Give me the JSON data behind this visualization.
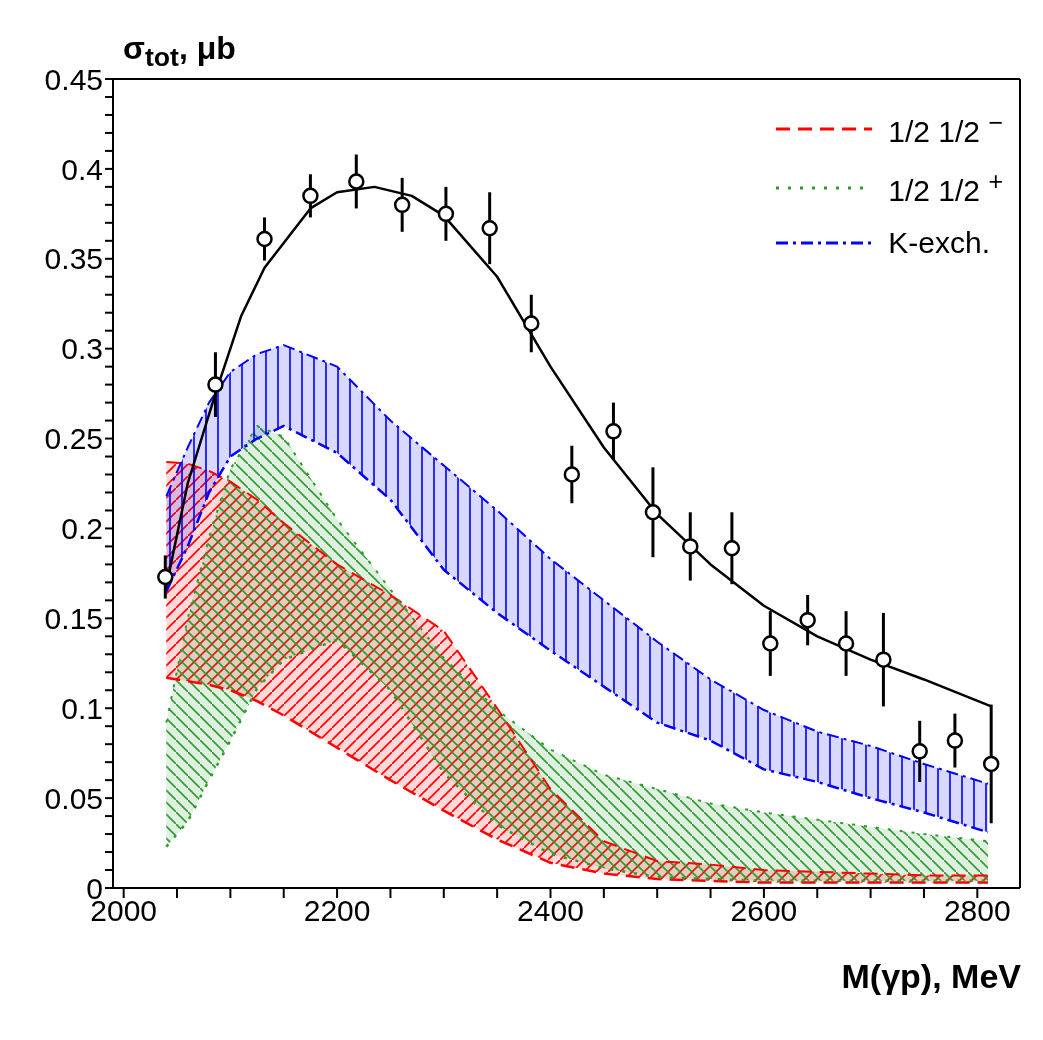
{
  "chart_data": {
    "type": "line",
    "xlabel": "M(γp), MeV",
    "ylabel": "σ$_{tot}$, μb",
    "xlim": [
      1990,
      2840
    ],
    "xticks": [
      2000,
      {
        "value": 2050,
        "label": null
      },
      {
        "value": 2100,
        "label": null
      },
      {
        "value": 2150,
        "label": null
      },
      2200,
      {
        "value": 2250,
        "label": null
      },
      {
        "value": 2300,
        "label": null
      },
      {
        "value": 2350,
        "label": null
      },
      2400,
      {
        "value": 2450,
        "label": null
      },
      {
        "value": 2500,
        "label": null
      },
      {
        "value": 2550,
        "label": null
      },
      2600,
      {
        "value": 2650,
        "label": null
      },
      {
        "value": 2700,
        "label": null
      },
      {
        "value": 2750,
        "label": null
      },
      2800
    ],
    "ylim": [
      0,
      0.45
    ],
    "yticks": [
      0,
      {
        "value": 0.01,
        "label": null
      },
      {
        "value": 0.02,
        "label": null
      },
      {
        "value": 0.03,
        "label": null
      },
      {
        "value": 0.04,
        "label": null
      },
      0.05,
      {
        "value": 0.06,
        "label": null
      },
      {
        "value": 0.07,
        "label": null
      },
      {
        "value": 0.08,
        "label": null
      },
      {
        "value": 0.09,
        "label": null
      },
      0.1,
      {
        "value": 0.11,
        "label": null
      },
      {
        "value": 0.12,
        "label": null
      },
      {
        "value": 0.13,
        "label": null
      },
      {
        "value": 0.14,
        "label": null
      },
      0.15,
      {
        "value": 0.16,
        "label": null
      },
      {
        "value": 0.17,
        "label": null
      },
      {
        "value": 0.18,
        "label": null
      },
      {
        "value": 0.19,
        "label": null
      },
      0.2,
      {
        "value": 0.21,
        "label": null
      },
      {
        "value": 0.22,
        "label": null
      },
      {
        "value": 0.23,
        "label": null
      },
      {
        "value": 0.24,
        "label": null
      },
      0.25,
      {
        "value": 0.26,
        "label": null
      },
      {
        "value": 0.27,
        "label": null
      },
      {
        "value": 0.28,
        "label": null
      },
      {
        "value": 0.29,
        "label": null
      },
      0.3,
      {
        "value": 0.31,
        "label": null
      },
      {
        "value": 0.32,
        "label": null
      },
      {
        "value": 0.33,
        "label": null
      },
      {
        "value": 0.34,
        "label": null
      },
      0.35,
      {
        "value": 0.36,
        "label": null
      },
      {
        "value": 0.37,
        "label": null
      },
      {
        "value": 0.38,
        "label": null
      },
      {
        "value": 0.39,
        "label": null
      },
      0.4,
      {
        "value": 0.41,
        "label": null
      },
      {
        "value": 0.42,
        "label": null
      },
      {
        "value": 0.43,
        "label": null
      },
      {
        "value": 0.44,
        "label": null
      },
      0.45
    ],
    "grid": false,
    "legend": "top right",
    "marker": "circle",
    "series": [
      {
        "name": "1/2 1/2 $^{−}$",
        "marker": "none",
        "color": "#ff0000",
        "line_style": "dashed",
        "x": [
          2040,
          2060,
          2080,
          2100,
          2125,
          2150,
          2200,
          2250,
          2300,
          2350,
          2400,
          2450,
          2500,
          2550,
          2600,
          2650,
          2700,
          2750,
          2810
        ],
        "values": [
          0.237,
          0.236,
          0.232,
          0.226,
          0.216,
          0.203,
          0.18,
          0.163,
          0.143,
          0.1,
          0.055,
          0.026,
          0.015,
          0.013,
          0.01,
          0.009,
          0.008,
          0.007,
          0.007
        ],
        "lower": [
          0.117,
          0.115,
          0.113,
          0.11,
          0.104,
          0.096,
          0.078,
          0.06,
          0.043,
          0.027,
          0.014,
          0.008,
          0.005,
          0.004,
          0.003,
          0.003,
          0.003,
          0.003,
          0.003
        ],
        "upper": [
          0.237,
          0.236,
          0.232,
          0.226,
          0.216,
          0.203,
          0.18,
          0.163,
          0.143,
          0.1,
          0.055,
          0.026,
          0.015,
          0.013,
          0.01,
          0.009,
          0.008,
          0.007,
          0.007
        ]
      },
      {
        "name": "1/2 1/2 $^{+}$",
        "marker": "none",
        "color": "#2f9a2f",
        "line_style": "dotted",
        "x": [
          2040,
          2060,
          2080,
          2100,
          2125,
          2150,
          2200,
          2250,
          2300,
          2350,
          2400,
          2450,
          2500,
          2550,
          2600,
          2650,
          2700,
          2750,
          2810
        ],
        "values": [
          0.092,
          0.15,
          0.195,
          0.233,
          0.257,
          0.251,
          0.205,
          0.166,
          0.128,
          0.099,
          0.077,
          0.063,
          0.055,
          0.047,
          0.042,
          0.038,
          0.034,
          0.03,
          0.026
        ],
        "lower": [
          0.023,
          0.037,
          0.06,
          0.082,
          0.111,
          0.127,
          0.138,
          0.11,
          0.064,
          0.035,
          0.019,
          0.011,
          0.006,
          0.005,
          0.004,
          0.004,
          0.004,
          0.004,
          0.004
        ],
        "upper": [
          0.092,
          0.15,
          0.195,
          0.233,
          0.257,
          0.251,
          0.205,
          0.166,
          0.128,
          0.099,
          0.077,
          0.063,
          0.055,
          0.047,
          0.042,
          0.038,
          0.034,
          0.03,
          0.026
        ]
      },
      {
        "name": "K-exch.",
        "marker": "none",
        "color": "#0000ff",
        "line_style": "dashdot",
        "x": [
          2040,
          2060,
          2080,
          2100,
          2125,
          2150,
          2200,
          2250,
          2300,
          2350,
          2400,
          2450,
          2500,
          2550,
          2600,
          2650,
          2700,
          2750,
          2810
        ],
        "values": [
          0.218,
          0.245,
          0.27,
          0.287,
          0.297,
          0.302,
          0.29,
          0.26,
          0.235,
          0.21,
          0.183,
          0.16,
          0.137,
          0.116,
          0.099,
          0.087,
          0.079,
          0.069,
          0.058
        ],
        "lower": [
          0.165,
          0.19,
          0.22,
          0.24,
          0.25,
          0.257,
          0.242,
          0.216,
          0.177,
          0.153,
          0.132,
          0.112,
          0.092,
          0.082,
          0.066,
          0.059,
          0.05,
          0.042,
          0.031
        ],
        "upper": [
          0.218,
          0.245,
          0.27,
          0.287,
          0.297,
          0.302,
          0.29,
          0.26,
          0.235,
          0.21,
          0.183,
          0.16,
          0.137,
          0.116,
          0.099,
          0.087,
          0.079,
          0.069,
          0.058
        ]
      },
      {
        "marker": "none",
        "color": "#ff0000",
        "line_style": "dashed",
        "x": [
          2040,
          2060,
          2080,
          2100,
          2125,
          2150,
          2200,
          2250,
          2300,
          2350,
          2400,
          2450,
          2500,
          2550,
          2600,
          2650,
          2700,
          2750,
          2810
        ],
        "values": [
          0.117,
          0.115,
          0.113,
          0.11,
          0.104,
          0.096,
          0.078,
          0.06,
          0.043,
          0.027,
          0.014,
          0.008,
          0.005,
          0.004,
          0.003,
          0.003,
          0.003,
          0.003,
          0.003
        ]
      },
      {
        "marker": "none",
        "color": "#2f9a2f",
        "line_style": "dotted",
        "x": [
          2040,
          2060,
          2080,
          2100,
          2125,
          2150,
          2200,
          2250,
          2300,
          2350,
          2400,
          2450,
          2500,
          2550,
          2600,
          2650,
          2700,
          2750,
          2810
        ],
        "values": [
          0.023,
          0.037,
          0.06,
          0.082,
          0.111,
          0.127,
          0.138,
          0.11,
          0.064,
          0.035,
          0.019,
          0.011,
          0.006,
          0.005,
          0.004,
          0.004,
          0.004,
          0.004,
          0.004
        ]
      },
      {
        "marker": "none",
        "color": "#0000ff",
        "line_style": "dashdot",
        "x": [
          2040,
          2060,
          2080,
          2100,
          2125,
          2150,
          2200,
          2250,
          2300,
          2350,
          2400,
          2450,
          2500,
          2550,
          2600,
          2650,
          2700,
          2750,
          2810
        ],
        "values": [
          0.165,
          0.19,
          0.22,
          0.24,
          0.25,
          0.257,
          0.242,
          0.216,
          0.177,
          0.153,
          0.132,
          0.112,
          0.092,
          0.082,
          0.066,
          0.059,
          0.05,
          0.042,
          0.031
        ]
      },
      {
        "marker": "none",
        "color": "#000000",
        "line_style": "solid",
        "x": [
          2039,
          2060,
          2086,
          2110,
          2132,
          2175,
          2200,
          2235,
          2270,
          2300,
          2350,
          2400,
          2450,
          2500,
          2550,
          2600,
          2650,
          2700,
          2750,
          2813
        ],
        "values": [
          0.165,
          0.225,
          0.275,
          0.318,
          0.345,
          0.378,
          0.387,
          0.39,
          0.385,
          0.374,
          0.34,
          0.29,
          0.245,
          0.208,
          0.18,
          0.157,
          0.14,
          0.127,
          0.116,
          0.101
        ]
      },
      {
        "type": "scatter",
        "color": "#000000",
        "x": [
          2039,
          2086,
          2132,
          2175,
          2218,
          2261,
          2302,
          2343,
          2382,
          2420,
          2459,
          2496,
          2531,
          2570,
          2606,
          2641,
          2677,
          2712,
          2746,
          2779,
          2813
        ],
        "values": [
          0.173,
          0.28,
          0.361,
          0.385,
          0.393,
          0.38,
          0.375,
          0.367,
          0.314,
          0.23,
          0.254,
          0.209,
          0.19,
          0.189,
          0.136,
          0.149,
          0.136,
          0.127,
          0.076,
          0.082,
          0.069
        ],
        "errors": [
          0.012,
          0.018,
          0.012,
          0.012,
          0.015,
          0.015,
          0.015,
          0.02,
          0.016,
          0.016,
          0.016,
          0.025,
          0.019,
          0.02,
          0.018,
          0.014,
          0.018,
          0.026,
          0.017,
          0.015,
          0.033
        ]
      }
    ]
  }
}
